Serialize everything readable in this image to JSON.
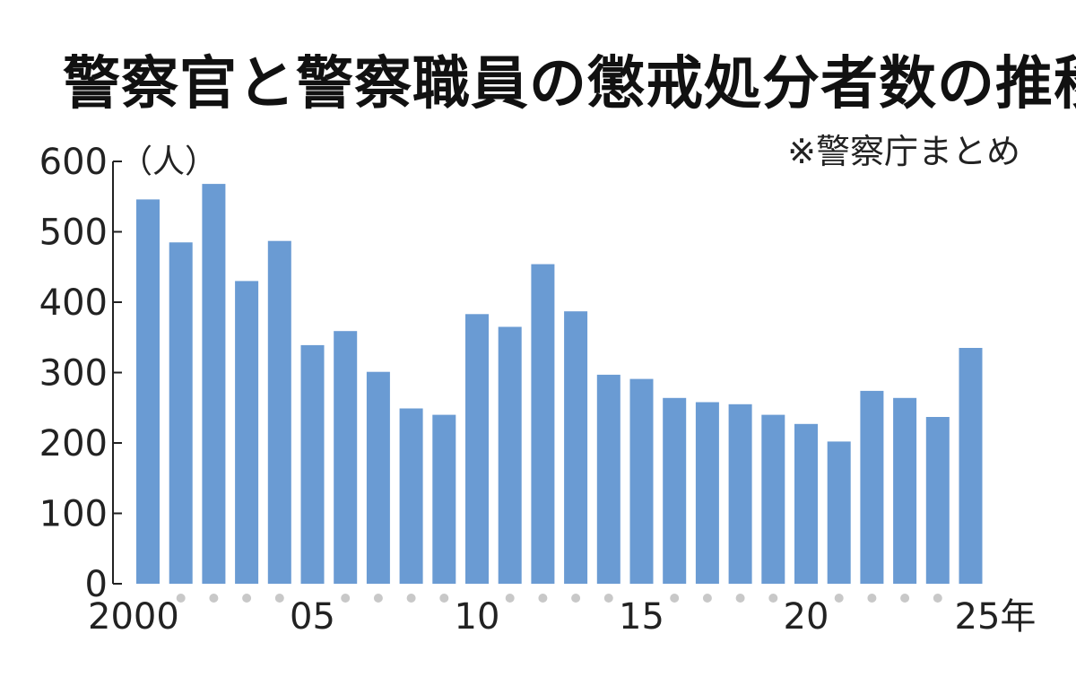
{
  "chart_data": {
    "type": "bar",
    "title": "警察官と警察職員の懲戒処分者数の推移",
    "source": "※警察庁まとめ",
    "ylabel": "（人）",
    "x_unit_suffix": "年",
    "ylim": [
      0,
      600
    ],
    "yticks": [
      0,
      100,
      200,
      300,
      400,
      500,
      600
    ],
    "x": [
      2000,
      2001,
      2002,
      2003,
      2004,
      2005,
      2006,
      2007,
      2008,
      2009,
      2010,
      2011,
      2012,
      2013,
      2014,
      2015,
      2016,
      2017,
      2018,
      2019,
      2020,
      2021,
      2022,
      2023,
      2024,
      2025
    ],
    "x_tick_labels": [
      {
        "index": 0,
        "label": "2000"
      },
      {
        "index": 5,
        "label": "05"
      },
      {
        "index": 10,
        "label": "10"
      },
      {
        "index": 15,
        "label": "15"
      },
      {
        "index": 20,
        "label": "20"
      },
      {
        "index": 25,
        "label": "25年"
      }
    ],
    "values": [
      546,
      485,
      568,
      430,
      487,
      339,
      359,
      301,
      249,
      240,
      383,
      365,
      454,
      387,
      297,
      291,
      264,
      258,
      255,
      240,
      227,
      202,
      274,
      264,
      237,
      335
    ],
    "bar_color": "#6a9bd3",
    "legend": "none",
    "grid": false
  }
}
